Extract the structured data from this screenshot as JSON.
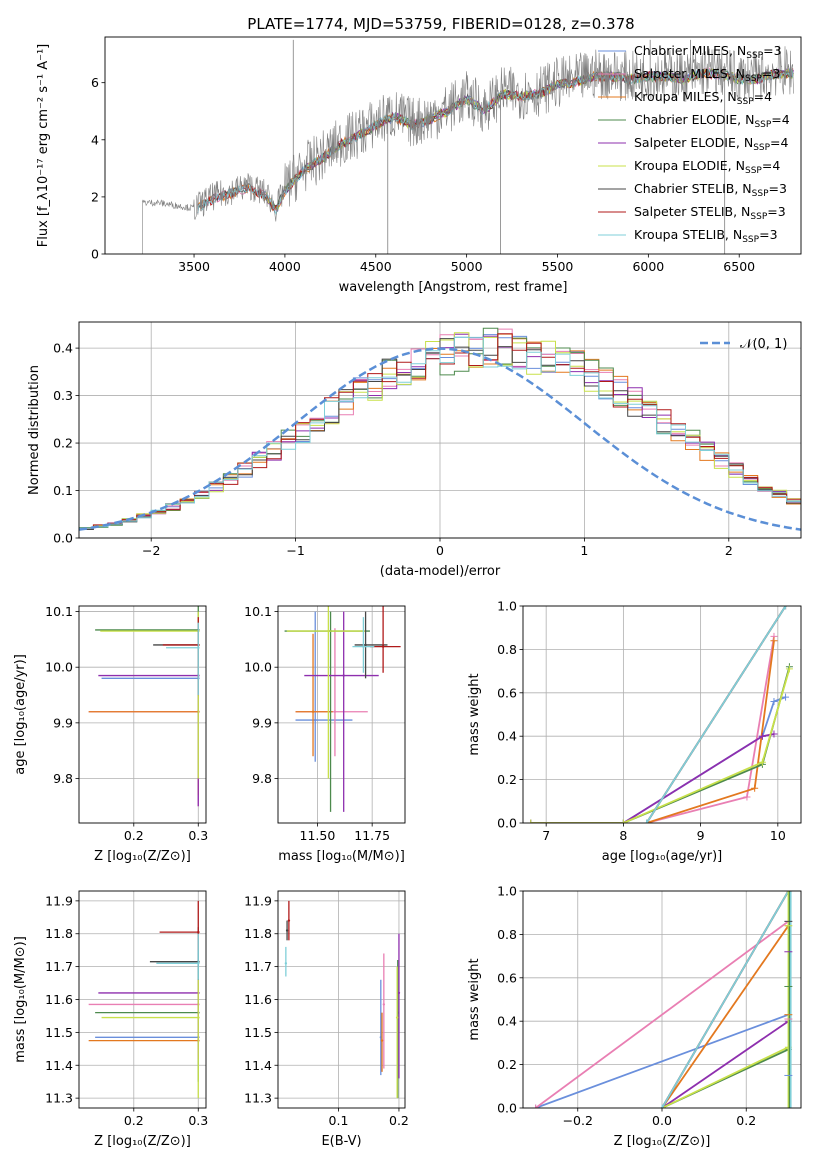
{
  "colors": {
    "Chabrier MILES": "#6a8fdc",
    "Salpeter MILES": "#e97fb3",
    "Kroupa MILES": "#e3781f",
    "Chabrier ELODIE": "#4d8a4d",
    "Salpeter ELODIE": "#8e2fae",
    "Kroupa ELODIE": "#c8e04a",
    "Chabrier STELIB": "#474747",
    "Salpeter STELIB": "#b01a1a",
    "Kroupa STELIB": "#7fcfd8",
    "data": "#808080",
    "normal": "#5b8fd6"
  },
  "chart_data": [
    {
      "id": "spectrum",
      "type": "line",
      "title": "PLATE=1774, MJD=53759, FIBERID=0128, z=0.378",
      "xlabel": "wavelength [Angstrom, rest frame]",
      "ylabel": "Flux [f_λ10⁻¹⁷ erg cm⁻² s⁻¹ A⁻¹]",
      "xlim": [
        3010,
        6840
      ],
      "ylim": [
        0,
        7.6
      ],
      "xticks": [
        3500,
        4000,
        4500,
        5000,
        5500,
        6000,
        6500
      ],
      "yticks": [
        0,
        2,
        4,
        6
      ],
      "grid": false,
      "legend": "upper right",
      "legend_entries": [
        {
          "model": "Chabrier MILES",
          "sub": "SSP",
          "n": "3"
        },
        {
          "model": "Salpeter MILES",
          "sub": "SSP",
          "n": "3"
        },
        {
          "model": "Kroupa MILES",
          "sub": "SSP",
          "n": "4"
        },
        {
          "model": "Chabrier ELODIE",
          "sub": "SSP",
          "n": "4"
        },
        {
          "model": "Salpeter ELODIE",
          "sub": "SSP",
          "n": "4"
        },
        {
          "model": "Kroupa ELODIE",
          "sub": "SSP",
          "n": "4"
        },
        {
          "model": "Chabrier STELIB",
          "sub": "SSP",
          "n": "3"
        },
        {
          "model": "Salpeter STELIB",
          "sub": "SSP",
          "n": "3"
        },
        {
          "model": "Kroupa STELIB",
          "sub": "SSP",
          "n": "3"
        }
      ],
      "data_continuum": {
        "x": [
          3215,
          3300,
          3400,
          3500,
          3600,
          3700,
          3800,
          3900,
          3950,
          4000,
          4100,
          4200,
          4300,
          4400,
          4500,
          4600,
          4700,
          4800,
          4900,
          5000,
          5100,
          5200,
          5300,
          5400,
          5500,
          5600,
          5700,
          5800,
          5900,
          6000,
          6100,
          6200,
          6300,
          6400,
          6500,
          6600,
          6700
        ],
        "y": [
          1.8,
          1.8,
          1.7,
          1.6,
          2.0,
          2.2,
          2.4,
          2.1,
          1.6,
          2.3,
          3.0,
          3.4,
          3.9,
          4.2,
          4.6,
          4.9,
          4.6,
          4.8,
          5.1,
          5.5,
          5.1,
          5.7,
          5.6,
          5.7,
          6.0,
          6.1,
          6.3,
          6.3,
          6.2,
          6.3,
          6.3,
          6.2,
          6.4,
          6.4,
          6.2,
          6.2,
          6.4
        ]
      },
      "model_range": [
        3520,
        6800
      ],
      "elodie_range": [
        3900,
        6800
      ],
      "data_range": [
        3215,
        6800
      ],
      "spikes": [
        {
          "x": 4046,
          "y": 7.5
        },
        {
          "x": 4566,
          "y": 0.0
        },
        {
          "x": 5186,
          "y": 0.0
        },
        {
          "x": 6010,
          "y": 7.5
        },
        {
          "x": 6232,
          "y": 7.5
        },
        {
          "x": 6420,
          "y": 0.0
        }
      ]
    },
    {
      "id": "residuals",
      "type": "line",
      "xlabel": "(data-model)/error",
      "ylabel": "Normed distribution",
      "xlim": [
        -2.5,
        2.5
      ],
      "ylim": [
        0,
        0.455
      ],
      "xticks": [
        -2,
        -1,
        0,
        1,
        2
      ],
      "yticks": [
        0.0,
        0.1,
        0.2,
        0.3,
        0.4
      ],
      "grid": true,
      "legend": "upper right",
      "legend_label": "𝒩(0, 1)",
      "bin_width": 0.1,
      "histogram": [
        0.02,
        0.025,
        0.03,
        0.038,
        0.046,
        0.055,
        0.065,
        0.078,
        0.093,
        0.109,
        0.125,
        0.143,
        0.164,
        0.183,
        0.205,
        0.226,
        0.246,
        0.268,
        0.288,
        0.307,
        0.325,
        0.342,
        0.355,
        0.368,
        0.378,
        0.386,
        0.393,
        0.397,
        0.399,
        0.397,
        0.394,
        0.386,
        0.378,
        0.368,
        0.355,
        0.342,
        0.325,
        0.307,
        0.288,
        0.268,
        0.246,
        0.226,
        0.205,
        0.183,
        0.164,
        0.143,
        0.125,
        0.109,
        0.093,
        0.078,
        0.065
      ]
    },
    {
      "id": "age-vs-Z",
      "type": "scatter",
      "xlabel": "Z [log₁₀(Z/Z⊙)]",
      "ylabel": "age  [log₁₀(age/yr)]",
      "xlim": [
        0.115,
        0.312
      ],
      "ylim": [
        9.72,
        10.11
      ],
      "xticks": [
        0.2,
        0.3
      ],
      "yticks": [
        9.8,
        9.9,
        10.0,
        10.1
      ],
      "grid": true,
      "points": [
        {
          "model": "Chabrier MILES",
          "x": 0.3,
          "y": 9.98,
          "xerr": [
            0.15,
            0.302
          ],
          "yerr": [
            9.76,
            10.1
          ]
        },
        {
          "model": "Salpeter MILES",
          "x": 0.3,
          "y": 9.92,
          "xerr": [
            0.13,
            0.302
          ],
          "yerr": [
            9.75,
            10.06
          ]
        },
        {
          "model": "Kroupa MILES",
          "x": 0.3,
          "y": 9.92,
          "xerr": [
            0.13,
            0.302
          ],
          "yerr": [
            9.77,
            10.05
          ]
        },
        {
          "model": "Chabrier ELODIE",
          "x": 0.3,
          "y": 10.067,
          "xerr": [
            0.14,
            0.302
          ],
          "yerr": [
            9.8,
            10.11
          ]
        },
        {
          "model": "Salpeter ELODIE",
          "x": 0.3,
          "y": 9.985,
          "xerr": [
            0.145,
            0.302
          ],
          "yerr": [
            9.75,
            10.09
          ]
        },
        {
          "model": "Kroupa ELODIE",
          "x": 0.3,
          "y": 10.065,
          "xerr": [
            0.148,
            0.302
          ],
          "yerr": [
            9.8,
            10.1
          ]
        },
        {
          "model": "Chabrier STELIB",
          "x": 0.3,
          "y": 10.04,
          "xerr": [
            0.23,
            0.302
          ],
          "yerr": [
            9.95,
            10.08
          ]
        },
        {
          "model": "Salpeter STELIB",
          "x": 0.3,
          "y": 10.04,
          "xerr": [
            0.245,
            0.302
          ],
          "yerr": [
            9.95,
            10.09
          ]
        },
        {
          "model": "Kroupa STELIB",
          "x": 0.3,
          "y": 10.035,
          "xerr": [
            0.25,
            0.302
          ],
          "yerr": [
            9.95,
            10.08
          ]
        }
      ]
    },
    {
      "id": "age-vs-mass",
      "type": "scatter",
      "xlabel": "mass [log₁₀(M/M⊙)]",
      "ylabel": "",
      "xlim": [
        11.32,
        11.9
      ],
      "ylim": [
        9.72,
        10.11
      ],
      "xticks": [
        11.5,
        11.75
      ],
      "yticks": [
        9.8,
        9.9,
        10.0,
        10.1
      ],
      "grid": true,
      "points": [
        {
          "model": "Chabrier MILES",
          "x": 11.49,
          "y": 9.905,
          "xerr": [
            11.4,
            11.66
          ],
          "yerr": [
            9.83,
            10.1
          ]
        },
        {
          "model": "Salpeter MILES",
          "x": 11.58,
          "y": 9.92,
          "xerr": [
            11.4,
            11.73
          ],
          "yerr": [
            9.84,
            10.07
          ]
        },
        {
          "model": "Kroupa MILES",
          "x": 11.48,
          "y": 9.92,
          "xerr": [
            11.4,
            11.57
          ],
          "yerr": [
            9.84,
            10.06
          ]
        },
        {
          "model": "Chabrier ELODIE",
          "x": 11.56,
          "y": 10.065,
          "xerr": [
            11.35,
            11.74
          ],
          "yerr": [
            9.74,
            10.1
          ]
        },
        {
          "model": "Salpeter ELODIE",
          "x": 11.62,
          "y": 9.985,
          "xerr": [
            11.44,
            11.78
          ],
          "yerr": [
            9.74,
            10.1
          ]
        },
        {
          "model": "Kroupa ELODIE",
          "x": 11.55,
          "y": 10.065,
          "xerr": [
            11.36,
            11.72
          ],
          "yerr": [
            9.8,
            10.11
          ]
        },
        {
          "model": "Chabrier STELIB",
          "x": 11.72,
          "y": 10.04,
          "xerr": [
            11.67,
            11.82
          ],
          "yerr": [
            9.98,
            10.1
          ]
        },
        {
          "model": "Salpeter STELIB",
          "x": 11.8,
          "y": 10.037,
          "xerr": [
            11.74,
            11.88
          ],
          "yerr": [
            9.99,
            10.11
          ]
        },
        {
          "model": "Kroupa STELIB",
          "x": 11.71,
          "y": 10.037,
          "xerr": [
            11.66,
            11.76
          ],
          "yerr": [
            9.99,
            10.09
          ]
        }
      ]
    },
    {
      "id": "mass-weight-vs-age",
      "type": "line",
      "xlabel": "age  [log₁₀(age/yr)]",
      "ylabel": "mass weight",
      "xlim": [
        6.7,
        10.3
      ],
      "ylim": [
        0,
        1.0
      ],
      "xticks": [
        7,
        8,
        9,
        10
      ],
      "yticks": [
        0.0,
        0.2,
        0.4,
        0.6,
        0.8,
        1.0
      ],
      "grid": true,
      "series": [
        {
          "model": "Chabrier MILES",
          "x": [
            8.0,
            9.8,
            9.95,
            10.1
          ],
          "y": [
            0.0,
            0.4,
            0.56,
            0.58
          ]
        },
        {
          "model": "Salpeter MILES",
          "x": [
            8.3,
            9.6,
            9.95
          ],
          "y": [
            0.0,
            0.12,
            0.86
          ]
        },
        {
          "model": "Kroupa MILES",
          "x": [
            8.3,
            9.7,
            9.95
          ],
          "y": [
            0.0,
            0.16,
            0.84
          ]
        },
        {
          "model": "Chabrier ELODIE",
          "x": [
            6.8,
            8.0,
            9.8,
            10.15
          ],
          "y": [
            0.0,
            0.0,
            0.27,
            0.72
          ]
        },
        {
          "model": "Salpeter ELODIE",
          "x": [
            6.8,
            8.0,
            9.8,
            9.95
          ],
          "y": [
            0.0,
            0.0,
            0.4,
            0.41
          ]
        },
        {
          "model": "Kroupa ELODIE",
          "x": [
            6.8,
            8.0,
            9.8,
            10.15
          ],
          "y": [
            0.0,
            0.0,
            0.28,
            0.71
          ]
        },
        {
          "model": "Chabrier STELIB",
          "x": [
            8.3,
            10.1
          ],
          "y": [
            0.0,
            1.0
          ]
        },
        {
          "model": "Salpeter STELIB",
          "x": [
            8.3,
            10.1
          ],
          "y": [
            0.0,
            1.0
          ]
        },
        {
          "model": "Kroupa STELIB",
          "x": [
            8.3,
            10.1
          ],
          "y": [
            0.0,
            1.0
          ]
        }
      ]
    },
    {
      "id": "mass-vs-Z",
      "type": "scatter",
      "xlabel": "Z [log₁₀(Z/Z⊙)]",
      "ylabel": "mass [log₁₀(M/M⊙)]",
      "xlim": [
        0.115,
        0.312
      ],
      "ylim": [
        11.27,
        11.93
      ],
      "xticks": [
        0.2,
        0.3
      ],
      "yticks": [
        11.3,
        11.4,
        11.5,
        11.6,
        11.7,
        11.8,
        11.9
      ],
      "grid": true,
      "points": [
        {
          "model": "Chabrier MILES",
          "x": 0.3,
          "y": 11.485,
          "xerr": [
            0.14,
            0.302
          ],
          "yerr": [
            11.4,
            11.65
          ]
        },
        {
          "model": "Salpeter MILES",
          "x": 0.3,
          "y": 11.585,
          "xerr": [
            0.13,
            0.302
          ],
          "yerr": [
            11.42,
            11.72
          ]
        },
        {
          "model": "Kroupa MILES",
          "x": 0.3,
          "y": 11.475,
          "xerr": [
            0.13,
            0.302
          ],
          "yerr": [
            11.42,
            11.57
          ]
        },
        {
          "model": "Chabrier ELODIE",
          "x": 0.3,
          "y": 11.56,
          "xerr": [
            0.14,
            0.302
          ],
          "yerr": [
            11.35,
            11.74
          ]
        },
        {
          "model": "Salpeter ELODIE",
          "x": 0.3,
          "y": 11.62,
          "xerr": [
            0.145,
            0.302
          ],
          "yerr": [
            11.42,
            11.8
          ]
        },
        {
          "model": "Kroupa ELODIE",
          "x": 0.3,
          "y": 11.545,
          "xerr": [
            0.15,
            0.302
          ],
          "yerr": [
            11.3,
            11.7
          ]
        },
        {
          "model": "Chabrier STELIB",
          "x": 0.3,
          "y": 11.715,
          "xerr": [
            0.225,
            0.302
          ],
          "yerr": [
            11.66,
            11.82
          ]
        },
        {
          "model": "Salpeter STELIB",
          "x": 0.3,
          "y": 11.805,
          "xerr": [
            0.24,
            0.302
          ],
          "yerr": [
            11.75,
            11.9
          ]
        },
        {
          "model": "Kroupa STELIB",
          "x": 0.3,
          "y": 11.71,
          "xerr": [
            0.235,
            0.302
          ],
          "yerr": [
            11.66,
            11.8
          ]
        }
      ]
    },
    {
      "id": "mass-vs-ebv",
      "type": "scatter",
      "xlabel": "E(B-V)",
      "ylabel": "",
      "xlim": [
        0.0,
        0.21
      ],
      "ylim": [
        11.27,
        11.93
      ],
      "xticks": [
        0.1,
        0.2
      ],
      "yticks": [
        11.3,
        11.4,
        11.5,
        11.6,
        11.7,
        11.8,
        11.9
      ],
      "grid": true,
      "points": [
        {
          "model": "Chabrier MILES",
          "x": 0.17,
          "y": 11.485,
          "yerr": [
            11.37,
            11.66
          ]
        },
        {
          "model": "Salpeter MILES",
          "x": 0.175,
          "y": 11.585,
          "yerr": [
            11.39,
            11.74
          ]
        },
        {
          "model": "Kroupa MILES",
          "x": 0.172,
          "y": 11.475,
          "yerr": [
            11.38,
            11.56
          ]
        },
        {
          "model": "Chabrier ELODIE",
          "x": 0.198,
          "y": 11.56,
          "yerr": [
            11.3,
            11.72
          ]
        },
        {
          "model": "Salpeter ELODIE",
          "x": 0.2,
          "y": 11.62,
          "yerr": [
            11.36,
            11.8
          ]
        },
        {
          "model": "Kroupa ELODIE",
          "x": 0.197,
          "y": 11.545,
          "yerr": [
            11.3,
            11.7
          ]
        },
        {
          "model": "Chabrier STELIB",
          "x": 0.015,
          "y": 11.81,
          "yerr": [
            11.78,
            11.84
          ]
        },
        {
          "model": "Salpeter STELIB",
          "x": 0.018,
          "y": 11.84,
          "yerr": [
            11.78,
            11.9
          ]
        },
        {
          "model": "Kroupa STELIB",
          "x": 0.013,
          "y": 11.71,
          "yerr": [
            11.67,
            11.76
          ]
        }
      ]
    },
    {
      "id": "mass-weight-vs-Z",
      "type": "line",
      "xlabel": "Z [log₁₀(Z/Z⊙)]",
      "ylabel": "mass weight",
      "xlim": [
        -0.33,
        0.33
      ],
      "ylim": [
        0,
        1.0
      ],
      "xticks": [
        -0.2,
        0.0,
        0.2
      ],
      "yticks": [
        0.0,
        0.2,
        0.4,
        0.6,
        0.8,
        1.0
      ],
      "grid": true,
      "series": [
        {
          "model": "Chabrier MILES",
          "x": [
            -0.3,
            0.3
          ],
          "y": [
            0.0,
            0.43
          ]
        },
        {
          "model": "Salpeter MILES",
          "x": [
            -0.3,
            0.3
          ],
          "y": [
            0.0,
            0.86
          ]
        },
        {
          "model": "Kroupa MILES",
          "x": [
            0.0,
            0.3
          ],
          "y": [
            0.0,
            0.84
          ]
        },
        {
          "model": "Chabrier ELODIE",
          "x": [
            0.0,
            0.3
          ],
          "y": [
            0.0,
            0.27
          ]
        },
        {
          "model": "Salpeter ELODIE",
          "x": [
            0.0,
            0.3
          ],
          "y": [
            0.0,
            0.4
          ]
        },
        {
          "model": "Kroupa ELODIE",
          "x": [
            0.0,
            0.3
          ],
          "y": [
            0.0,
            0.28
          ]
        },
        {
          "model": "Chabrier STELIB",
          "x": [
            0.0,
            0.3
          ],
          "y": [
            0.0,
            1.0
          ]
        },
        {
          "model": "Salpeter STELIB",
          "x": [
            0.0,
            0.3
          ],
          "y": [
            0.0,
            1.0
          ]
        },
        {
          "model": "Kroupa STELIB",
          "x": [
            0.0,
            0.3
          ],
          "y": [
            0.0,
            1.0
          ]
        }
      ],
      "vertical_at_x": 0.3,
      "marks_at_x": [
        0.15,
        0.41,
        0.43,
        0.56,
        0.72,
        0.84,
        0.86,
        1.0
      ]
    }
  ]
}
